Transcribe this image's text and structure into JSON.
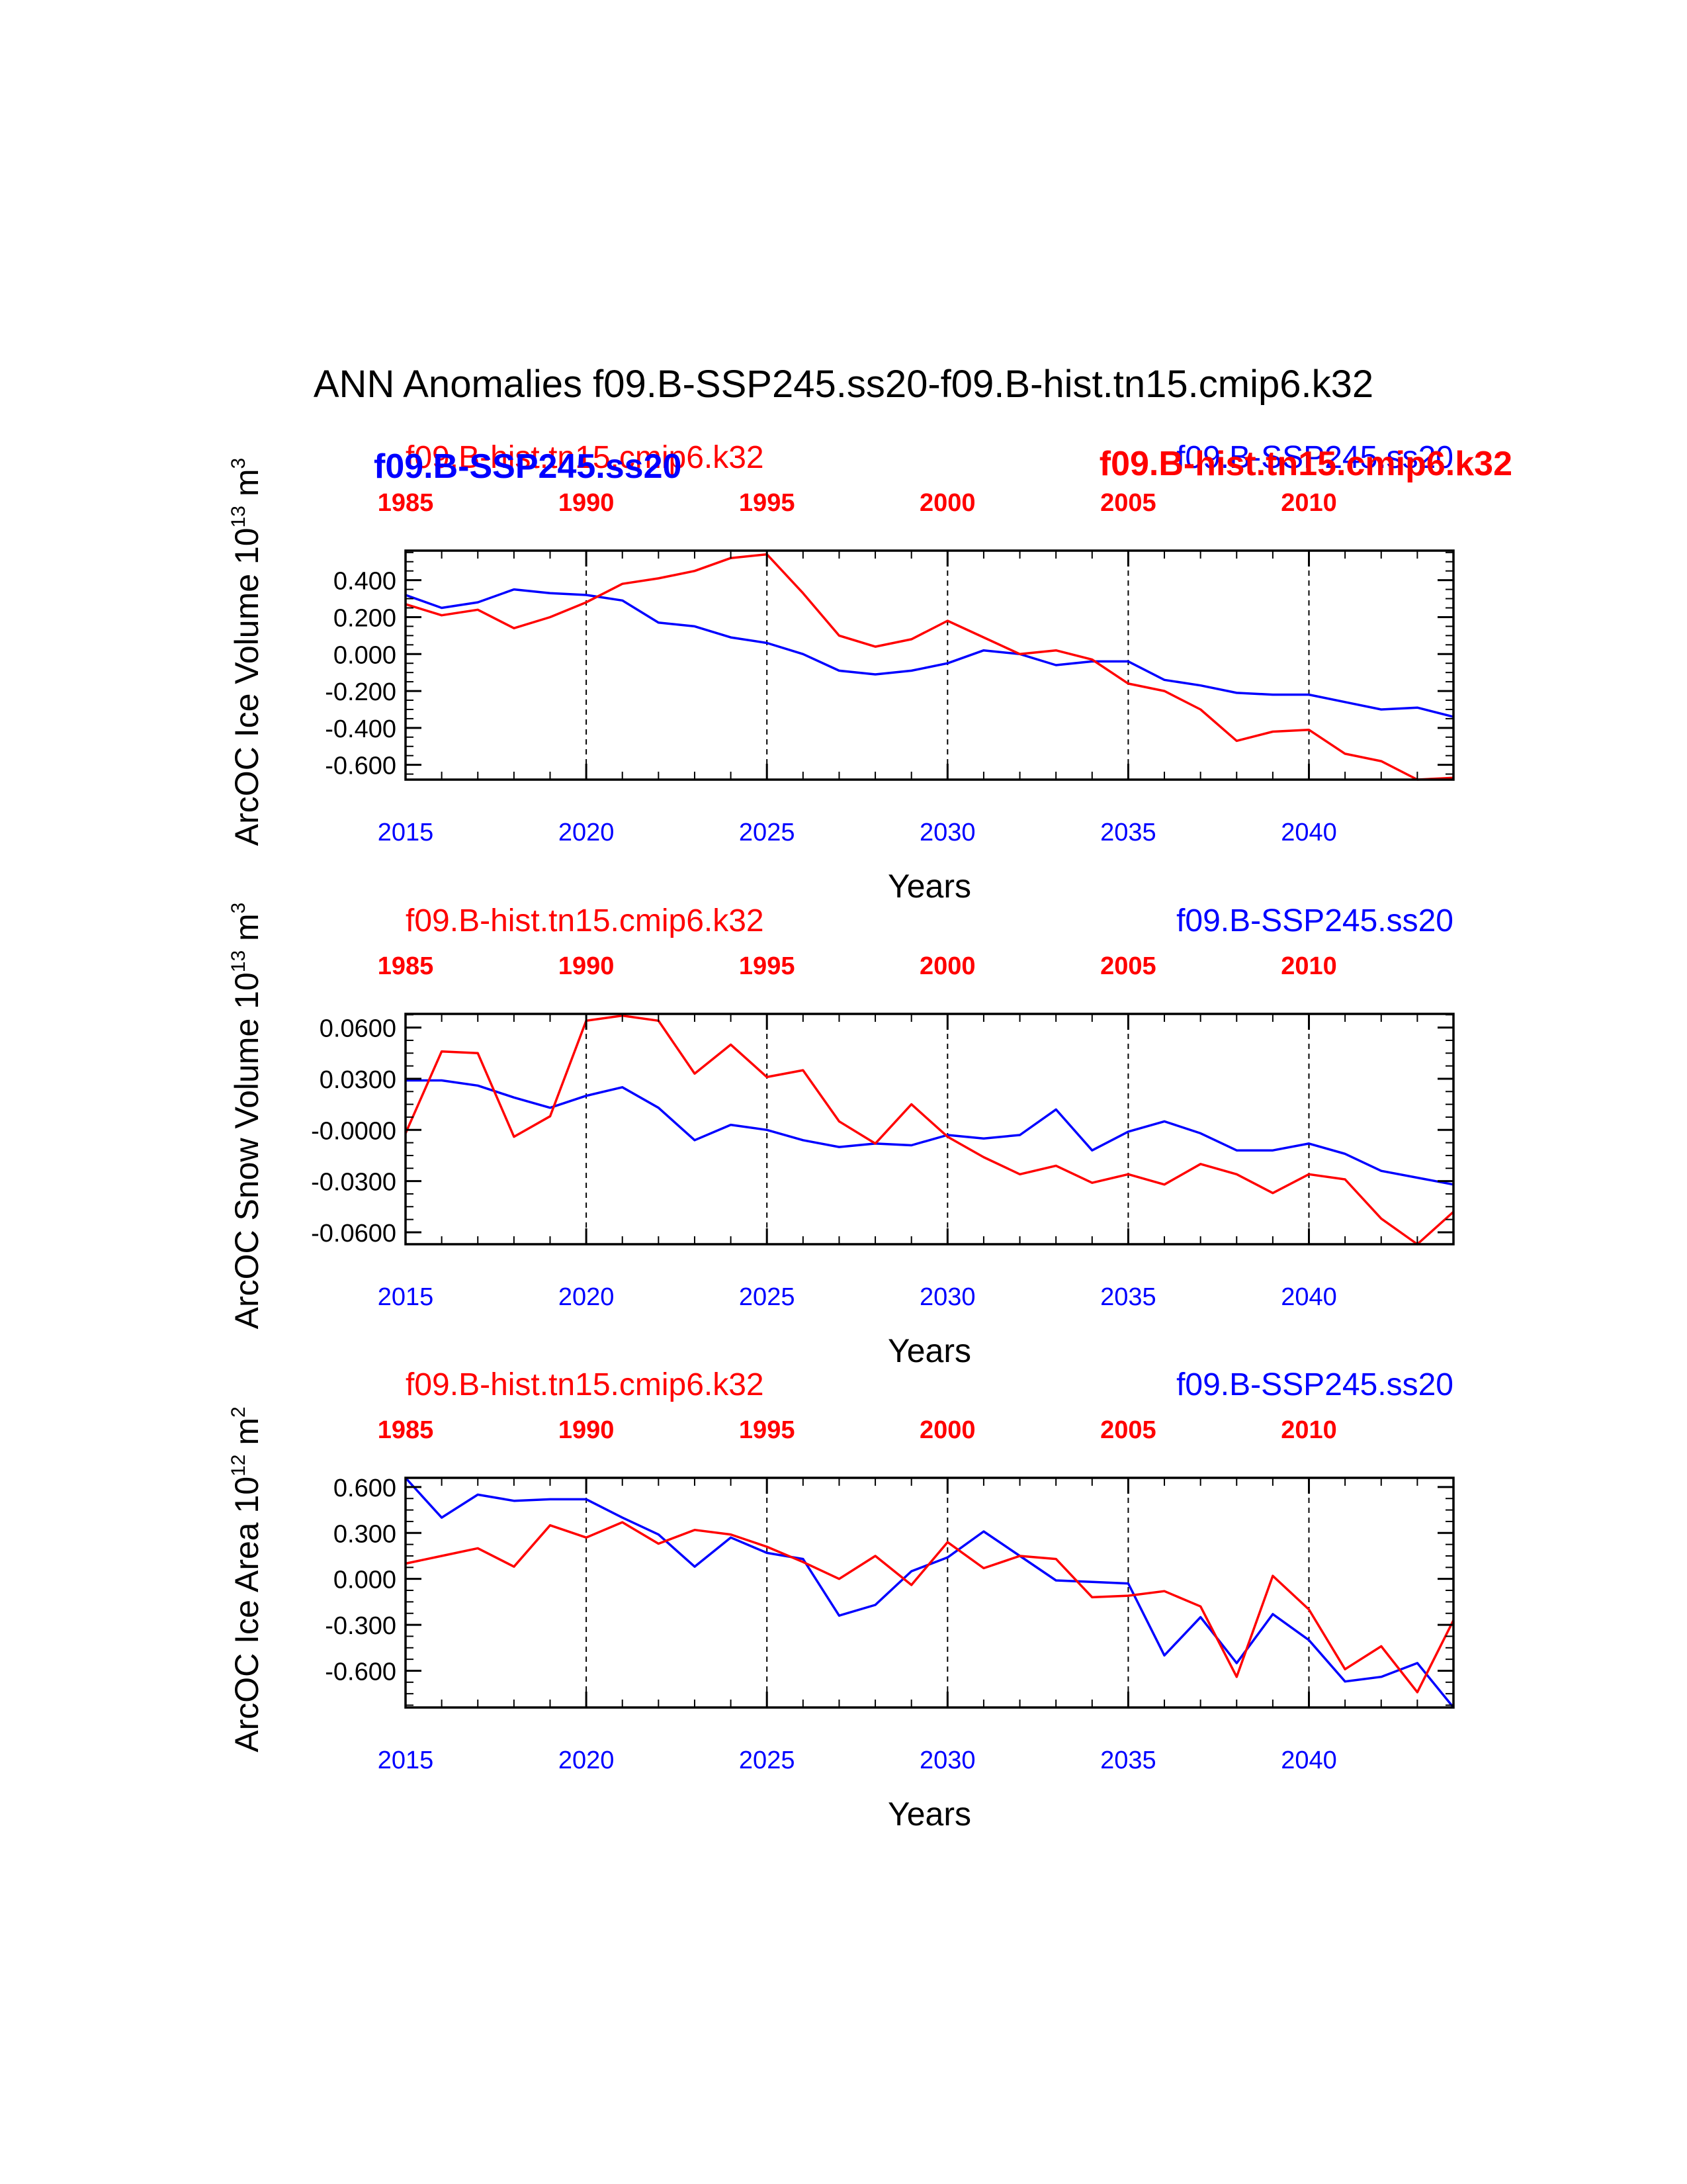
{
  "figure_title": "ANN Anomalies f09.B-SSP245.ss20-f09.B-hist.tn15.cmip6.k32",
  "colors": {
    "ssp": "#0000ff",
    "hist": "#ff0000",
    "axis": "#000000"
  },
  "overlay_labels": {
    "left_bold": "f09.B-SSP245.ss20",
    "right_bold": "f09.B-hist.tn15.cmip6.k32"
  },
  "chart_data": [
    {
      "type": "line",
      "ylabel_main": "ArcOC Ice Volume 10",
      "ylabel_exp": "13",
      "ylabel_unit": "m",
      "ylabel_unit_exp": "3",
      "xlabel": "Years",
      "xlim": [
        2015,
        2044
      ],
      "ylim": [
        -0.68,
        0.56
      ],
      "yticks": [
        0.4,
        0.2,
        0.0,
        -0.2,
        -0.4,
        -0.6
      ],
      "ytick_labels": [
        "0.400",
        "0.200",
        "0.000",
        "-0.200",
        "-0.400",
        "-0.600"
      ],
      "yminor_step": 0.05,
      "xticks_bottom": [
        2015,
        2020,
        2025,
        2030,
        2035,
        2040
      ],
      "xtick_labels_bottom": [
        "2015",
        "2020",
        "2025",
        "2030",
        "2035",
        "2040"
      ],
      "xtick_labels_top": [
        "1985",
        "1990",
        "1995",
        "2000",
        "2005",
        "2010"
      ],
      "header_left": "f09.B-hist.tn15.cmip6.k32",
      "header_right": "f09.B-SSP245.ss20",
      "x": [
        2015,
        2016,
        2017,
        2018,
        2019,
        2020,
        2021,
        2022,
        2023,
        2024,
        2025,
        2026,
        2027,
        2028,
        2029,
        2030,
        2031,
        2032,
        2033,
        2034,
        2035,
        2036,
        2037,
        2038,
        2039,
        2040,
        2041,
        2042,
        2043,
        2044
      ],
      "series": [
        {
          "name": "f09.B-SSP245.ss20",
          "color": "#0000ff",
          "values": [
            0.32,
            0.25,
            0.28,
            0.35,
            0.33,
            0.32,
            0.29,
            0.17,
            0.15,
            0.09,
            0.06,
            0.0,
            -0.09,
            -0.11,
            -0.09,
            -0.05,
            0.02,
            0.0,
            -0.06,
            -0.04,
            -0.04,
            -0.14,
            -0.17,
            -0.21,
            -0.22,
            -0.22,
            -0.26,
            -0.3,
            -0.29,
            -0.34
          ]
        },
        {
          "name": "f09.B-hist.tn15.cmip6.k32",
          "color": "#ff0000",
          "values": [
            0.27,
            0.21,
            0.24,
            0.14,
            0.2,
            0.28,
            0.38,
            0.41,
            0.45,
            0.52,
            0.54,
            0.33,
            0.1,
            0.04,
            0.08,
            0.18,
            0.09,
            0.0,
            0.02,
            -0.03,
            -0.16,
            -0.2,
            -0.3,
            -0.47,
            -0.42,
            -0.41,
            -0.54,
            -0.58,
            -0.68,
            -0.67
          ]
        }
      ]
    },
    {
      "type": "line",
      "ylabel_main": "ArcOC Snow Volume 10",
      "ylabel_exp": "13",
      "ylabel_unit": "m",
      "ylabel_unit_exp": "3",
      "xlabel": "Years",
      "xlim": [
        2015,
        2044
      ],
      "ylim": [
        -0.067,
        0.068
      ],
      "yticks": [
        0.06,
        0.03,
        0.0,
        -0.03,
        -0.06
      ],
      "ytick_labels": [
        "0.0600",
        "0.0300",
        "-0.0000",
        "-0.0300",
        "-0.0600"
      ],
      "yminor_step": 0.0075,
      "xticks_bottom": [
        2015,
        2020,
        2025,
        2030,
        2035,
        2040
      ],
      "xtick_labels_bottom": [
        "2015",
        "2020",
        "2025",
        "2030",
        "2035",
        "2040"
      ],
      "xtick_labels_top": [
        "1985",
        "1990",
        "1995",
        "2000",
        "2005",
        "2010"
      ],
      "header_left": "f09.B-hist.tn15.cmip6.k32",
      "header_right": "f09.B-SSP245.ss20",
      "x": [
        2015,
        2016,
        2017,
        2018,
        2019,
        2020,
        2021,
        2022,
        2023,
        2024,
        2025,
        2026,
        2027,
        2028,
        2029,
        2030,
        2031,
        2032,
        2033,
        2034,
        2035,
        2036,
        2037,
        2038,
        2039,
        2040,
        2041,
        2042,
        2043,
        2044
      ],
      "series": [
        {
          "name": "f09.B-SSP245.ss20",
          "color": "#0000ff",
          "values": [
            0.029,
            0.029,
            0.026,
            0.019,
            0.013,
            0.02,
            0.025,
            0.013,
            -0.006,
            0.003,
            0.0,
            -0.006,
            -0.01,
            -0.008,
            -0.009,
            -0.003,
            -0.005,
            -0.003,
            0.012,
            -0.012,
            -0.001,
            0.005,
            -0.002,
            -0.012,
            -0.012,
            -0.008,
            -0.014,
            -0.024,
            -0.028,
            -0.032
          ]
        },
        {
          "name": "f09.B-hist.tn15.cmip6.k32",
          "color": "#ff0000",
          "values": [
            -0.002,
            0.046,
            0.045,
            -0.004,
            0.008,
            0.064,
            0.067,
            0.064,
            0.033,
            0.05,
            0.031,
            0.035,
            0.005,
            -0.008,
            0.015,
            -0.004,
            -0.016,
            -0.026,
            -0.021,
            -0.031,
            -0.026,
            -0.032,
            -0.02,
            -0.026,
            -0.037,
            -0.026,
            -0.029,
            -0.052,
            -0.067,
            -0.048
          ]
        }
      ]
    },
    {
      "type": "line",
      "ylabel_main": "ArcOC Ice Area 10",
      "ylabel_exp": "12",
      "ylabel_unit": "m",
      "ylabel_unit_exp": "2",
      "xlabel": "Years",
      "xlim": [
        2015,
        2044
      ],
      "ylim": [
        -0.84,
        0.66
      ],
      "yticks": [
        0.6,
        0.3,
        0.0,
        -0.3,
        -0.6
      ],
      "ytick_labels": [
        "0.600",
        "0.300",
        "0.000",
        "-0.300",
        "-0.600"
      ],
      "yminor_step": 0.075,
      "xticks_bottom": [
        2015,
        2020,
        2025,
        2030,
        2035,
        2040
      ],
      "xtick_labels_bottom": [
        "2015",
        "2020",
        "2025",
        "2030",
        "2035",
        "2040"
      ],
      "xtick_labels_top": [
        "1985",
        "1990",
        "1995",
        "2000",
        "2005",
        "2010"
      ],
      "header_left": "f09.B-hist.tn15.cmip6.k32",
      "header_right": "f09.B-SSP245.ss20",
      "x": [
        2015,
        2016,
        2017,
        2018,
        2019,
        2020,
        2021,
        2022,
        2023,
        2024,
        2025,
        2026,
        2027,
        2028,
        2029,
        2030,
        2031,
        2032,
        2033,
        2034,
        2035,
        2036,
        2037,
        2038,
        2039,
        2040,
        2041,
        2042,
        2043,
        2044
      ],
      "series": [
        {
          "name": "f09.B-SSP245.ss20",
          "color": "#0000ff",
          "values": [
            0.66,
            0.4,
            0.55,
            0.51,
            0.52,
            0.52,
            0.4,
            0.29,
            0.08,
            0.27,
            0.17,
            0.13,
            -0.24,
            -0.17,
            0.05,
            0.14,
            0.31,
            0.15,
            -0.01,
            -0.02,
            -0.03,
            -0.5,
            -0.25,
            -0.55,
            -0.23,
            -0.4,
            -0.67,
            -0.64,
            -0.55,
            -0.84
          ]
        },
        {
          "name": "f09.B-hist.tn15.cmip6.k32",
          "color": "#ff0000",
          "values": [
            0.1,
            0.15,
            0.2,
            0.08,
            0.35,
            0.27,
            0.37,
            0.23,
            0.32,
            0.29,
            0.21,
            0.11,
            0.0,
            0.15,
            -0.04,
            0.24,
            0.07,
            0.15,
            0.13,
            -0.12,
            -0.11,
            -0.08,
            -0.18,
            -0.64,
            0.02,
            -0.2,
            -0.59,
            -0.44,
            -0.74,
            -0.27
          ]
        }
      ]
    }
  ]
}
